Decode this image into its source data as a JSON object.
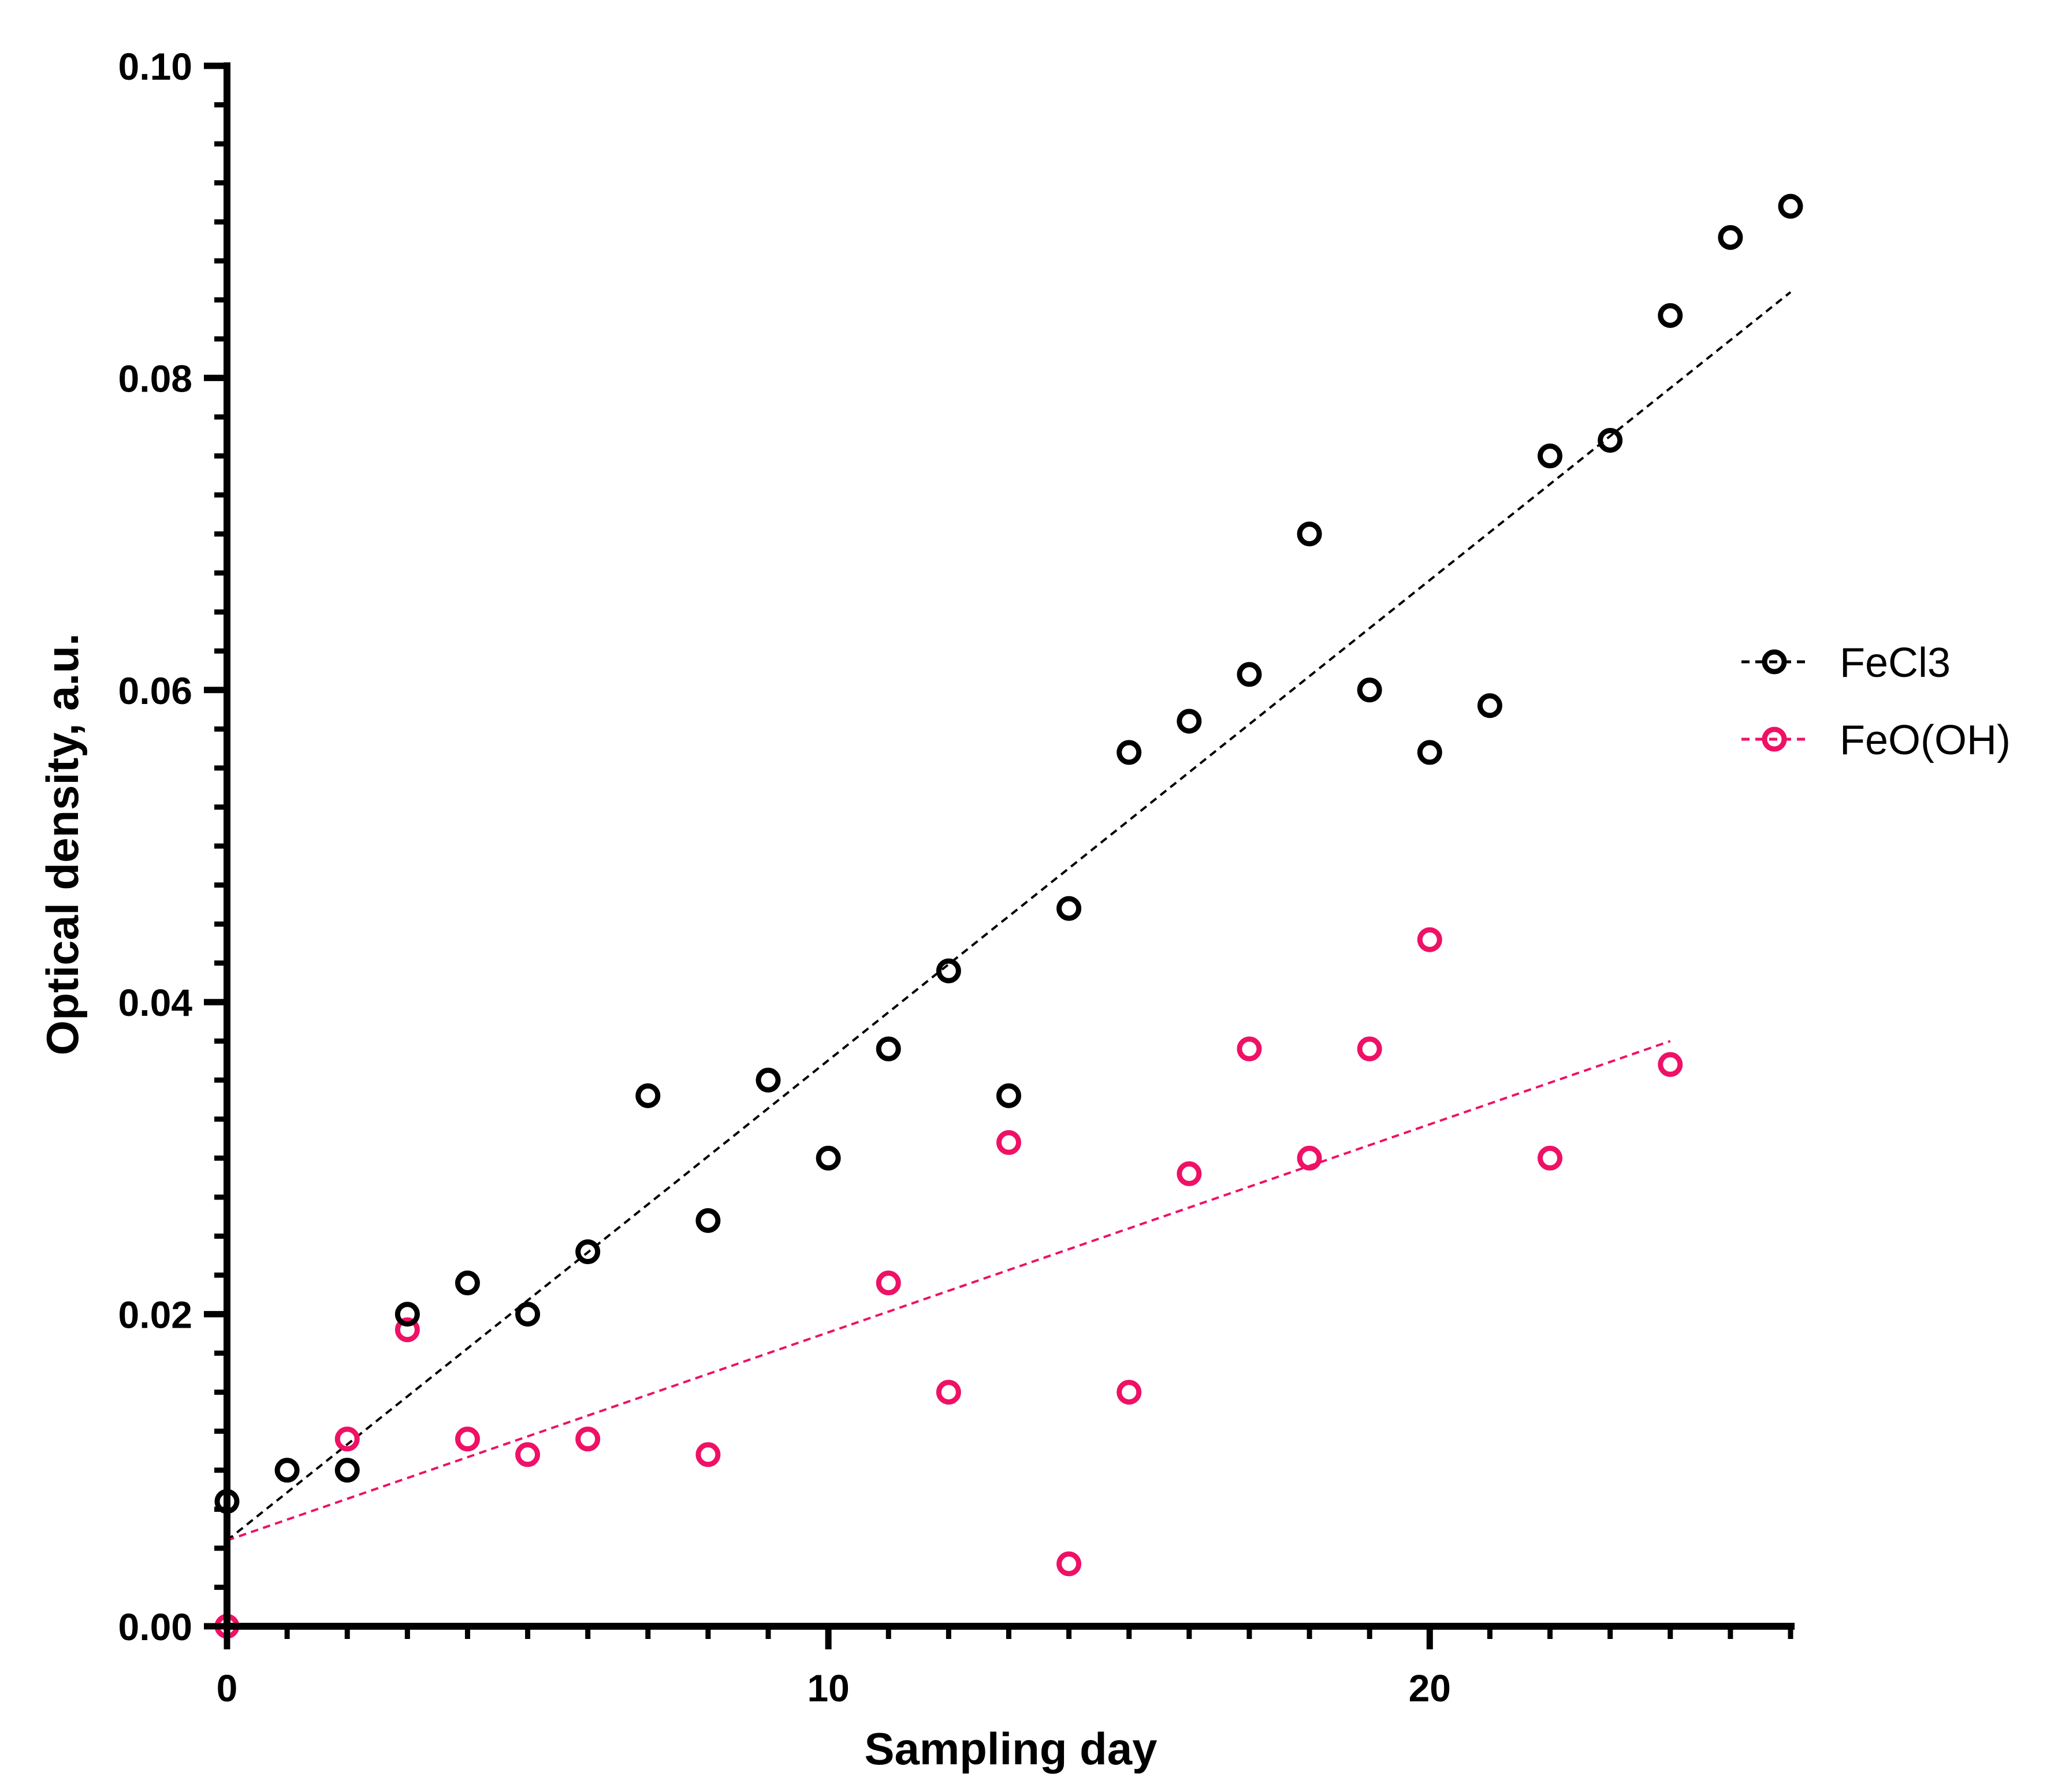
{
  "chart_data": {
    "type": "scatter",
    "title": "",
    "xlabel": "Sampling day",
    "ylabel": "Optical density, a.u.",
    "xlim": [
      0,
      26
    ],
    "ylim": [
      0,
      0.1
    ],
    "x_major_ticks": [
      0,
      10,
      20
    ],
    "x_tick_labels": [
      "0",
      "10",
      "20"
    ],
    "y_major_ticks": [
      0,
      0.02,
      0.04,
      0.06,
      0.08,
      0.1
    ],
    "y_tick_labels": [
      "0.00",
      "0.02",
      "0.04",
      "0.06",
      "0.08",
      "0.10"
    ],
    "grid": false,
    "legend_position": "right",
    "series": [
      {
        "name": "FeCl3",
        "color": "#000000",
        "marker": "open-circle",
        "x": [
          0,
          1,
          2,
          3,
          4,
          5,
          6,
          7,
          8,
          9,
          10,
          11,
          12,
          13,
          14,
          15,
          16,
          17,
          18,
          19,
          20,
          21,
          22,
          23,
          24,
          25,
          26
        ],
        "y": [
          0.008,
          0.01,
          0.01,
          0.02,
          0.022,
          0.02,
          0.024,
          0.034,
          0.026,
          0.035,
          0.03,
          0.037,
          0.042,
          0.034,
          0.046,
          0.056,
          0.058,
          0.061,
          0.07,
          0.06,
          0.056,
          0.059,
          0.075,
          0.076,
          0.084,
          0.089,
          0.091
        ],
        "trendline": {
          "style": "dashed",
          "x": [
            0,
            26
          ],
          "y": [
            0.0055,
            0.0855
          ]
        }
      },
      {
        "name": "FeO(OH)",
        "color": "#ee1166",
        "marker": "open-circle",
        "x": [
          0,
          2,
          3,
          4,
          5,
          6,
          8,
          11,
          12,
          13,
          14,
          15,
          16,
          17,
          18,
          19,
          20,
          22,
          24
        ],
        "y": [
          0.0,
          0.012,
          0.019,
          0.012,
          0.011,
          0.012,
          0.011,
          0.022,
          0.015,
          0.031,
          0.004,
          0.015,
          0.029,
          0.037,
          0.03,
          0.037,
          0.044,
          0.03,
          0.036
        ],
        "trendline": {
          "style": "dashed",
          "x": [
            0,
            24
          ],
          "y": [
            0.0055,
            0.0375
          ]
        }
      }
    ]
  }
}
